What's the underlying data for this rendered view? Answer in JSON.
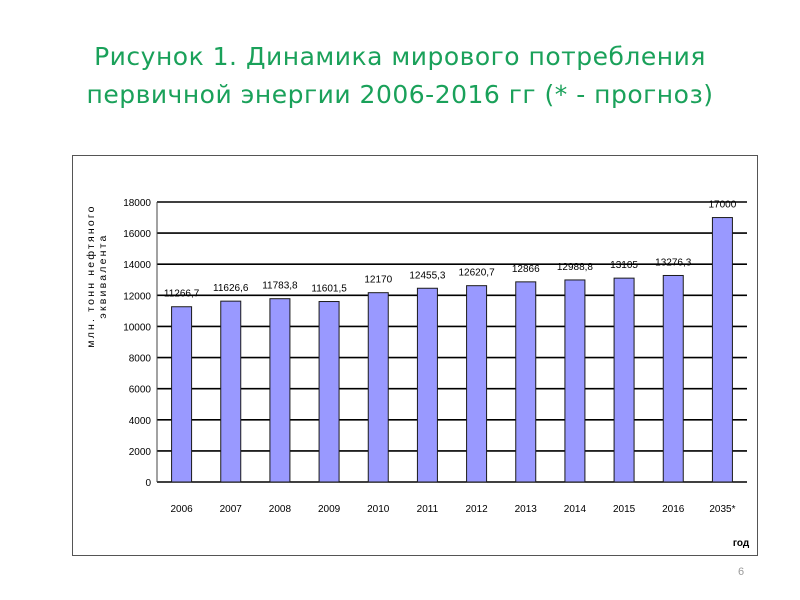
{
  "slide": {
    "title_line1": "Рисунок 1. Динамика мирового потребления",
    "title_line2": "первичной энергии 2006-2016 гг (* - прогноз)",
    "page_number": "6"
  },
  "colors": {
    "title": "#1aa15a",
    "bar_fill": "#9999ff",
    "bar_stroke": "#1a1a1a",
    "grid": "#000000"
  },
  "chart_data": {
    "type": "bar",
    "categories": [
      "2006",
      "2007",
      "2008",
      "2009",
      "2010",
      "2011",
      "2012",
      "2013",
      "2014",
      "2015",
      "2016",
      "2035*"
    ],
    "values": [
      11266.7,
      11626.6,
      11783.8,
      11601.5,
      12170,
      12455.3,
      12620.7,
      12866,
      12988.8,
      13105,
      13276.3,
      17000
    ],
    "data_labels": [
      "11266,7",
      "11626,6",
      "11783,8",
      "11601,5",
      "12170",
      "12455,3",
      "12620,7",
      "12866",
      "12988,8",
      "13105",
      "13276,3",
      "17000"
    ],
    "ylabel_line1": "млн. тонн нефтяного",
    "ylabel_line2": "эквивалента",
    "xlabel": "год",
    "ylim": [
      0,
      18000
    ],
    "yticks": [
      0,
      2000,
      4000,
      6000,
      8000,
      10000,
      12000,
      14000,
      16000,
      18000
    ],
    "grid": true,
    "legend": "none"
  }
}
